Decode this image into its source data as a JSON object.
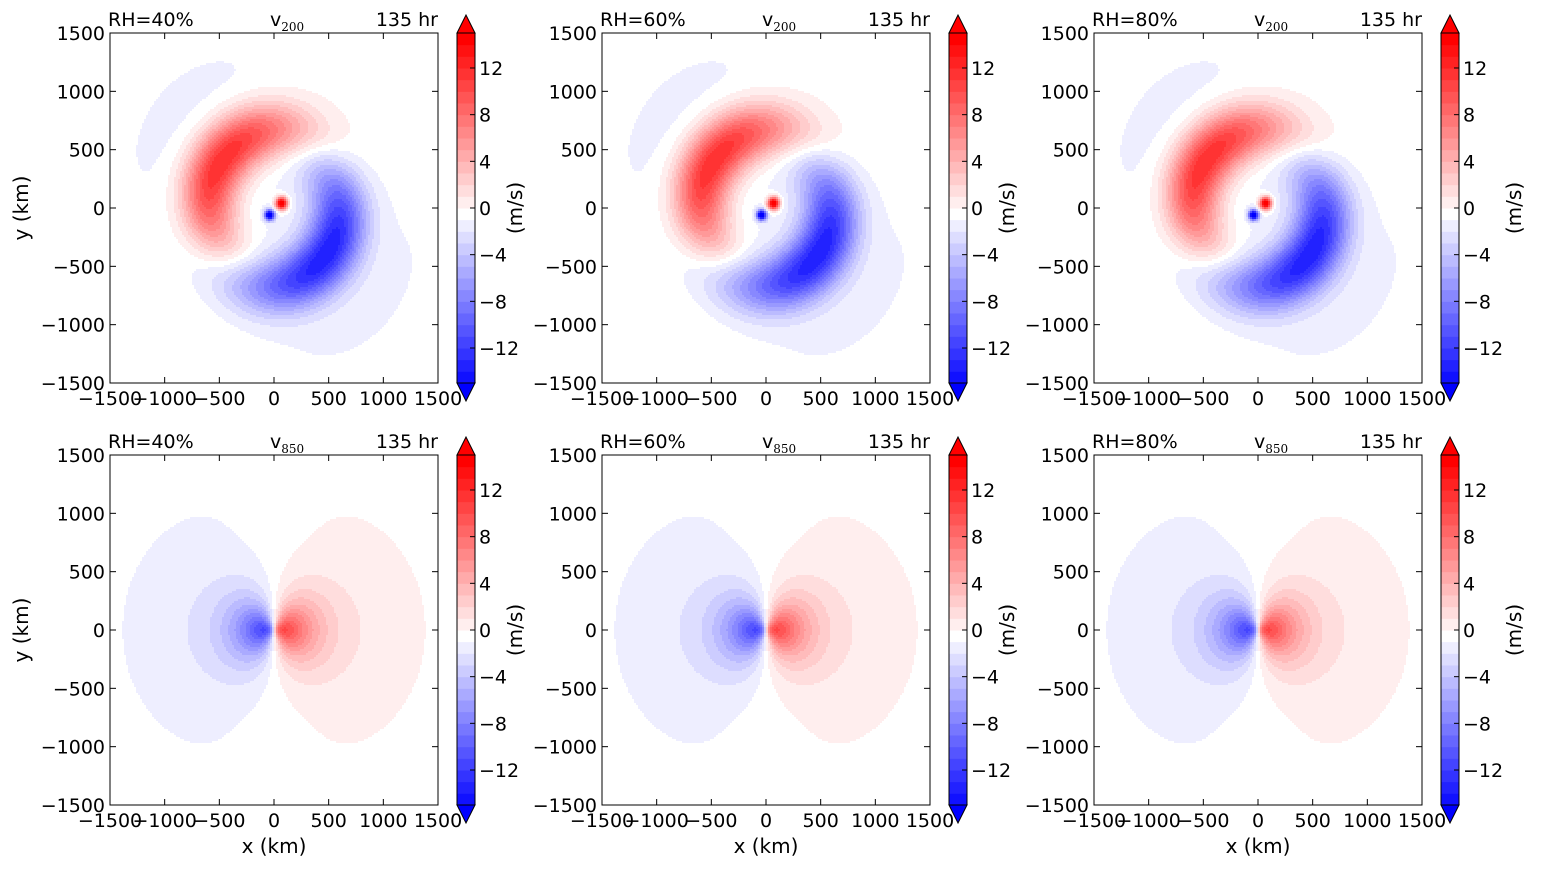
{
  "chart_data": {
    "type": "heatmap",
    "time_label": "135 hr",
    "colorbar_label": "(m/s)",
    "colorbar_ticks": [
      -12,
      -8,
      -4,
      0,
      4,
      8,
      12
    ],
    "colorbar_range": [
      -15,
      15
    ],
    "colormap": {
      "negative": "#0000ff",
      "zero": "#ffffff",
      "positive": "#ff0000"
    },
    "x_ticks": [
      -1500,
      -1000,
      -500,
      0,
      500,
      1000,
      1500
    ],
    "y_ticks": [
      1500,
      1000,
      500,
      0,
      -500,
      -1000,
      -1500
    ],
    "xlim": [
      -1500,
      1500
    ],
    "ylim": [
      -1500,
      1500
    ],
    "xlabel": "x (km)",
    "ylabel": "y (km)",
    "panels": [
      {
        "rh": "RH=40%",
        "var": "v",
        "level": "200",
        "pattern": "upper",
        "vmax": 15
      },
      {
        "rh": "RH=60%",
        "var": "v",
        "level": "200",
        "pattern": "upper",
        "vmax": 15
      },
      {
        "rh": "RH=80%",
        "var": "v",
        "level": "200",
        "pattern": "upper",
        "vmax": 15
      },
      {
        "rh": "RH=40%",
        "var": "v",
        "level": "850",
        "pattern": "lower",
        "vmax": 15
      },
      {
        "rh": "RH=60%",
        "var": "v",
        "level": "850",
        "pattern": "lower",
        "vmax": 15
      },
      {
        "rh": "RH=80%",
        "var": "v",
        "level": "850",
        "pattern": "lower",
        "vmax": 15
      }
    ]
  }
}
